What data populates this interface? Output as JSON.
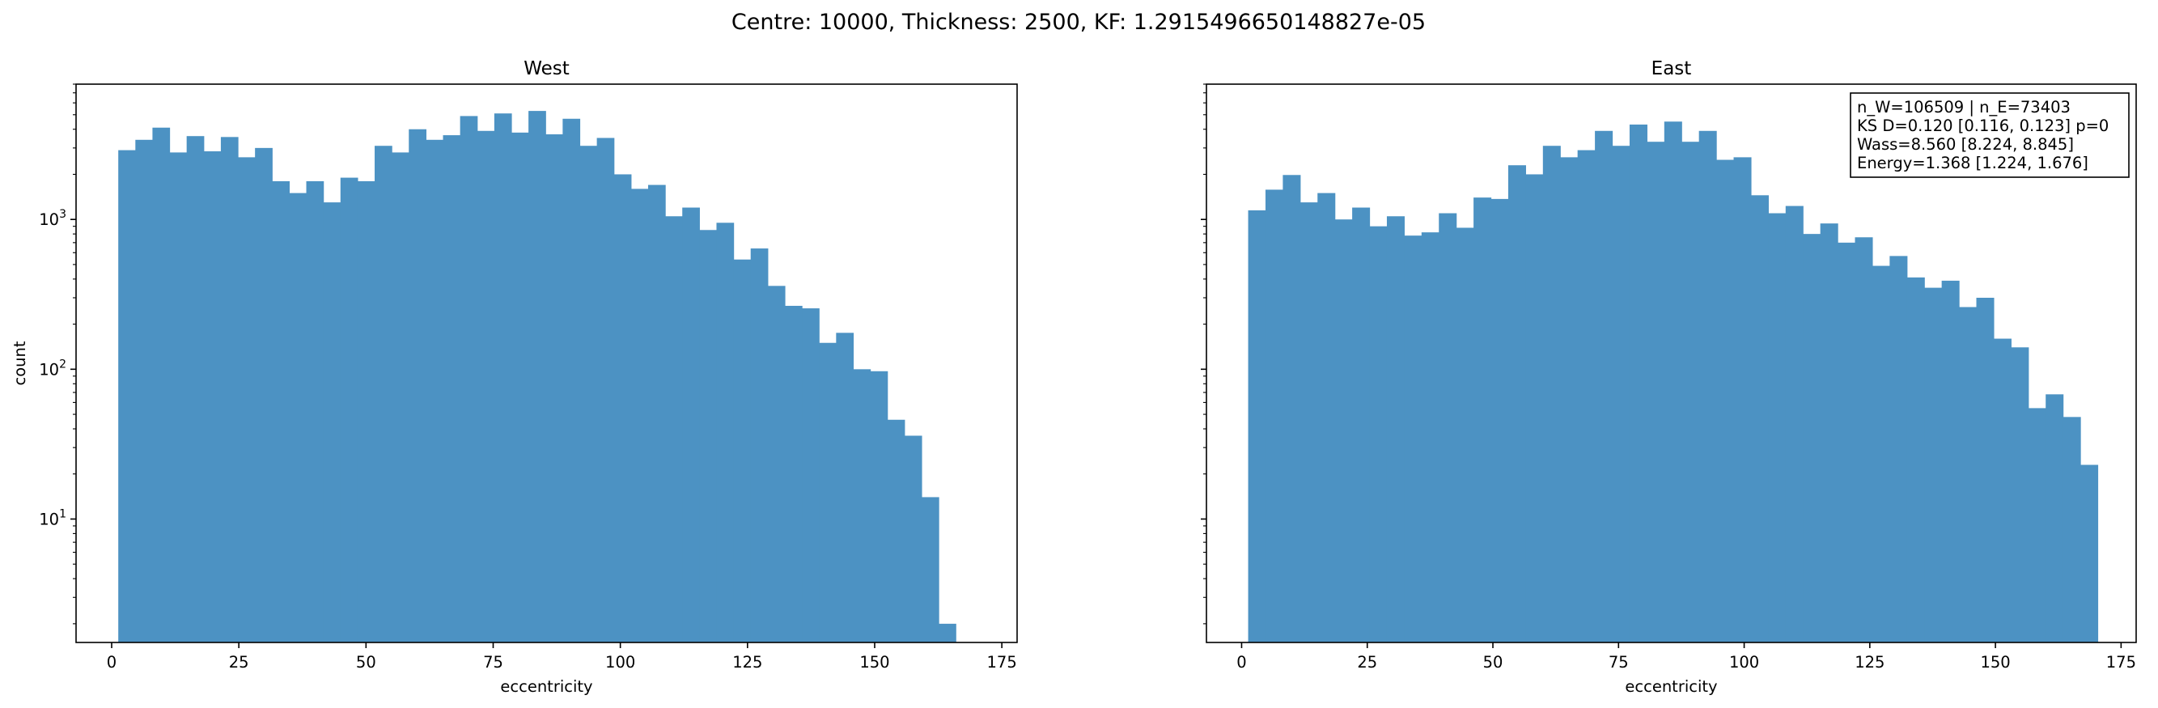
{
  "chart_data": {
    "title": "Centre: 10000, Thickness: 2500, KF: 1.2915496650148827e-05",
    "y_scale": "log",
    "ylim": [
      1.5,
      8000
    ],
    "ylabel": "count",
    "y_tick_labels": [
      "10",
      "10",
      "10"
    ],
    "y_tick_exponents": [
      "1",
      "2",
      "3"
    ],
    "y_tick_values": [
      10,
      100,
      1000
    ],
    "sharey": true,
    "xlim": [
      -7,
      178
    ],
    "color": "#4c92c3",
    "panels": [
      {
        "type": "bar",
        "title": "West",
        "xlabel": "eccentricity",
        "x_ticks": [
          0,
          25,
          50,
          75,
          100,
          125,
          150,
          175
        ],
        "bin_start": 1.3,
        "bin_width": 3.36,
        "counts": [
          2900,
          3400,
          4100,
          2800,
          3600,
          2850,
          3550,
          2600,
          3000,
          1800,
          1500,
          1800,
          1300,
          1900,
          1800,
          3100,
          2800,
          4000,
          3400,
          3650,
          4900,
          3900,
          5100,
          3800,
          5300,
          3700,
          4700,
          3100,
          3500,
          2000,
          1600,
          1700,
          1050,
          1200,
          850,
          950,
          540,
          640,
          360,
          265,
          255,
          150,
          175,
          100,
          97,
          46,
          36,
          14,
          2
        ]
      },
      {
        "type": "bar",
        "title": "East",
        "xlabel": "eccentricity",
        "x_ticks": [
          0,
          25,
          50,
          75,
          100,
          125,
          150,
          175
        ],
        "bin_start": 1.3,
        "bin_width": 3.45,
        "counts": [
          1150,
          1580,
          1980,
          1300,
          1500,
          1000,
          1200,
          900,
          1050,
          780,
          820,
          1100,
          880,
          1400,
          1370,
          2300,
          2000,
          3100,
          2600,
          2900,
          3900,
          3100,
          4300,
          3300,
          4500,
          3300,
          3900,
          2500,
          2600,
          1450,
          1100,
          1230,
          800,
          940,
          700,
          760,
          490,
          570,
          410,
          350,
          390,
          260,
          300,
          160,
          140,
          55,
          68,
          48,
          23
        ],
        "annotation": [
          "n_W=106509 | n_E=73403",
          "KS D=0.120 [0.116, 0.123]  p=0",
          "Wass=8.560 [8.224, 8.845]",
          "Energy=1.368 [1.224, 1.676]"
        ]
      }
    ]
  }
}
